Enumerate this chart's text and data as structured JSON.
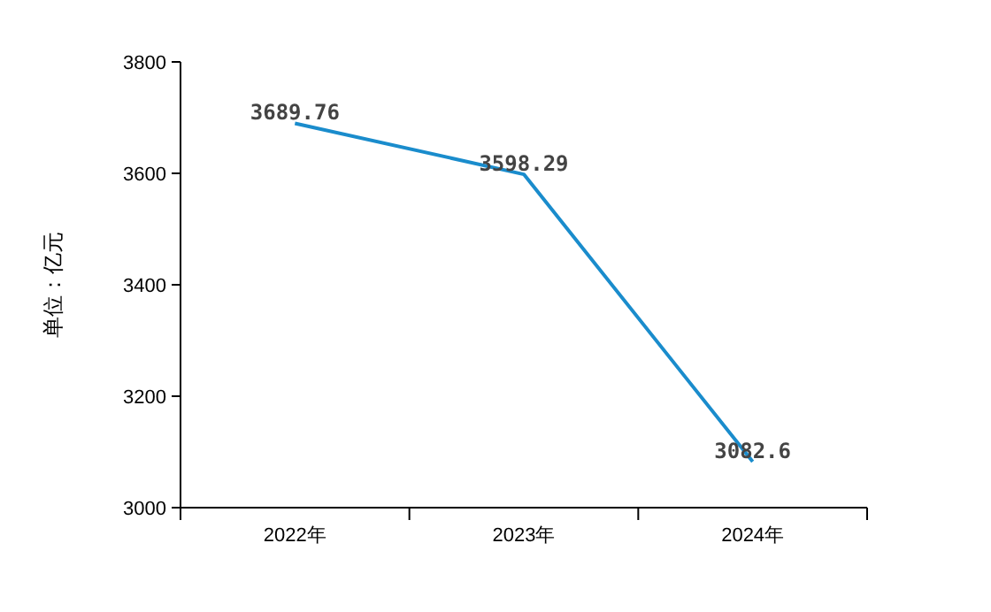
{
  "chart_data": {
    "type": "line",
    "ylabel": "单位：亿元",
    "categories": [
      "2022年",
      "2023年",
      "2024年"
    ],
    "values": [
      3689.76,
      3598.29,
      3082.6
    ],
    "color": "#1a8ccc",
    "ylim": [
      3000,
      3800
    ],
    "yticks": [
      3000,
      3200,
      3400,
      3600,
      3800
    ],
    "data_labels": true
  }
}
